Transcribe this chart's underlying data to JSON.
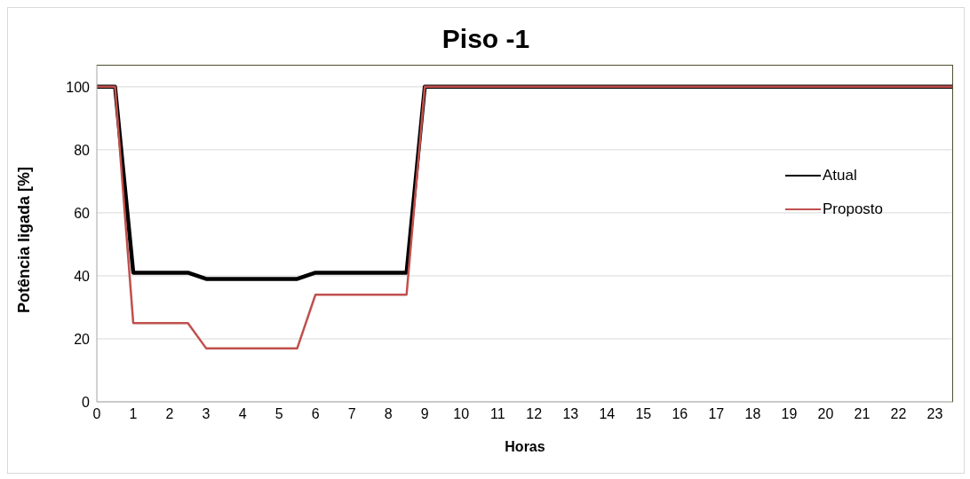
{
  "chart_data": {
    "type": "line",
    "title": "Piso -1",
    "xlabel": "Horas",
    "ylabel": "Potência ligada [%]",
    "x": [
      0,
      0.5,
      1,
      2.5,
      3,
      5.5,
      6,
      8.5,
      9,
      23.5
    ],
    "series": [
      {
        "name": "Atual",
        "color": "#000000",
        "values": [
          100,
          100,
          41,
          41,
          39,
          39,
          41,
          41,
          100,
          100
        ]
      },
      {
        "name": "Proposto",
        "color": "#c0504d",
        "values": [
          100,
          100,
          25,
          25,
          17,
          17,
          34,
          34,
          100,
          100
        ]
      }
    ],
    "xlim": [
      0,
      23.5
    ],
    "xticks": [
      0,
      1,
      2,
      3,
      4,
      5,
      6,
      7,
      8,
      9,
      10,
      11,
      12,
      13,
      14,
      15,
      16,
      17,
      18,
      19,
      20,
      21,
      22,
      23
    ],
    "ylim": [
      0,
      107
    ],
    "yticks": [
      0,
      20,
      40,
      60,
      80,
      100
    ],
    "grid": "y",
    "legend": "right",
    "marker": "none",
    "line_style": "solid"
  }
}
